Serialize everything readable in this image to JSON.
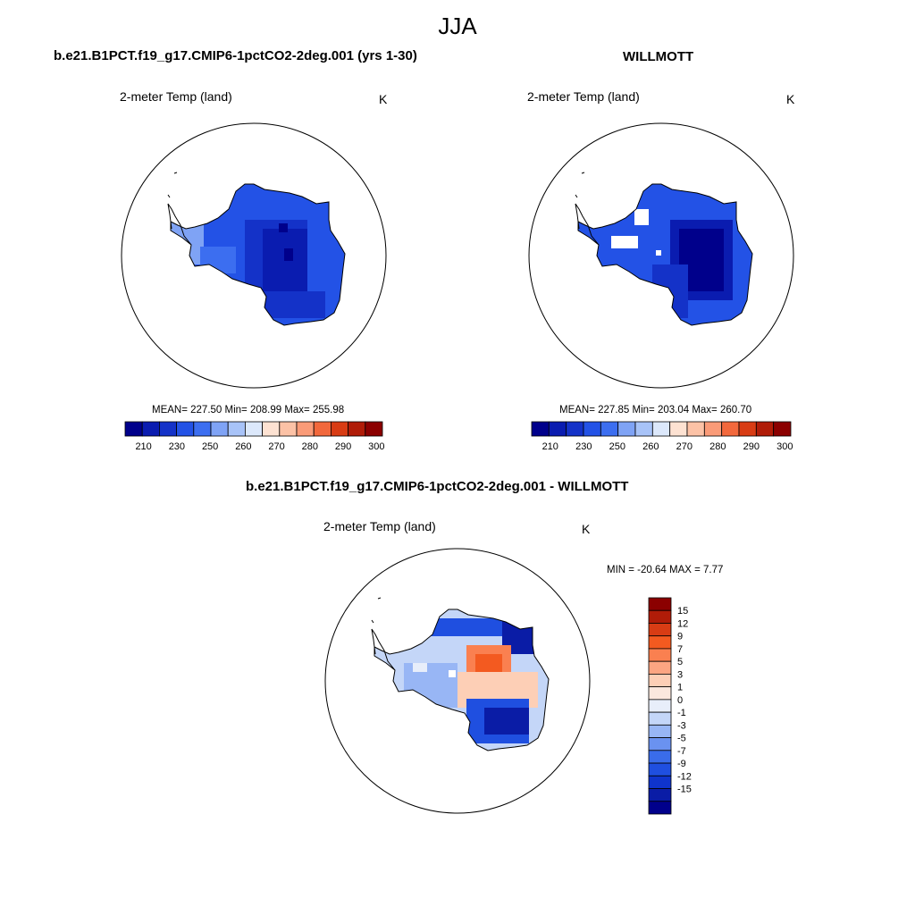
{
  "title": "JJA",
  "panels": [
    {
      "id": "model",
      "case_title": "b.e21.B1PCT.f19_g17.CMIP6-1pctCO2-2deg.001 (yrs 1-30)",
      "variable": "2-meter Temp (land)",
      "units": "K",
      "stats": "MEAN= 227.50  Min= 208.99  Max= 255.98"
    },
    {
      "id": "obs",
      "case_title": "WILLMOTT",
      "variable": "2-meter Temp (land)",
      "units": "K",
      "stats": "MEAN= 227.85  Min= 203.04  Max= 260.70"
    },
    {
      "id": "diff",
      "case_title": "b.e21.B1PCT.f19_g17.CMIP6-1pctCO2-2deg.001 - WILLMOTT",
      "variable": "2-meter Temp (land)",
      "units": "K",
      "stats": "MIN = -20.64 MAX =   7.77"
    }
  ],
  "abs_colorbar": {
    "colors": [
      "#00008b",
      "#0a1cb0",
      "#1432c8",
      "#2352e6",
      "#3c6ef0",
      "#7fa3f5",
      "#a8c3f8",
      "#dce8fb",
      "#fde2d2",
      "#fcc2a6",
      "#fa9b78",
      "#f2683c",
      "#d83c14",
      "#b01c08",
      "#8b0000"
    ],
    "labels": [
      "210",
      "230",
      "250",
      "260",
      "270",
      "280",
      "290",
      "300"
    ]
  },
  "diff_colorbar": {
    "colors": [
      "#8b0000",
      "#b01c08",
      "#d83c14",
      "#f35a20",
      "#fa8050",
      "#fca582",
      "#fdcfb6",
      "#fbe8de",
      "#e8eefa",
      "#c4d6f8",
      "#98b6f5",
      "#6a92f0",
      "#3a6cea",
      "#1f4fe0",
      "#0f34cc",
      "#0a1ca6",
      "#00008b"
    ],
    "labels": [
      "15",
      "12",
      "9",
      "7",
      "5",
      "3",
      "1",
      "0",
      "-1",
      "-3",
      "-5",
      "-7",
      "-9",
      "-12",
      "-15"
    ]
  }
}
